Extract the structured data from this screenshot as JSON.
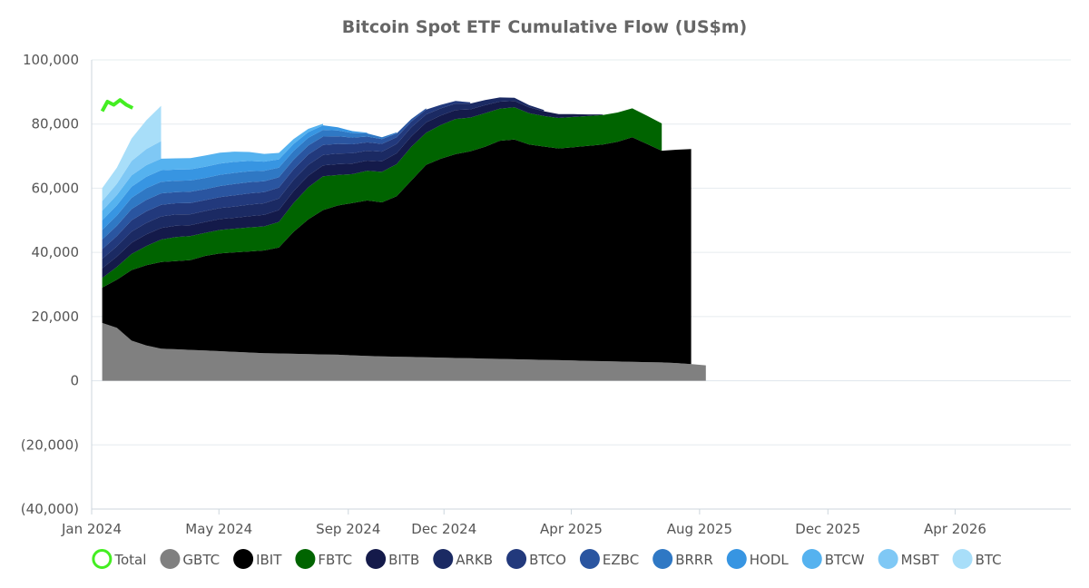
{
  "chart_data": {
    "type": "area",
    "stacked": true,
    "title": "Bitcoin Spot ETF Cumulative Flow (US$m)",
    "xlabel": "",
    "ylabel": "",
    "ylim": [
      -40000,
      100000
    ],
    "yticks": [
      {
        "value": 100000,
        "label": "100,000"
      },
      {
        "value": 80000,
        "label": "80,000"
      },
      {
        "value": 60000,
        "label": "60,000"
      },
      {
        "value": 40000,
        "label": "40,000"
      },
      {
        "value": 20000,
        "label": "20,000"
      },
      {
        "value": 0,
        "label": "0"
      },
      {
        "value": -20000,
        "label": "(20,000)"
      },
      {
        "value": -40000,
        "label": "(40,000)"
      }
    ],
    "xlim": [
      "2024-01-01",
      "2026-07-20"
    ],
    "xticks": [
      {
        "value": "2024-01-01",
        "label": "Jan 2024"
      },
      {
        "value": "2024-05-01",
        "label": "May 2024"
      },
      {
        "value": "2024-09-01",
        "label": "Sep 2024"
      },
      {
        "value": "2024-12-01",
        "label": "Dec 2024"
      },
      {
        "value": "2025-04-01",
        "label": "Apr 2025"
      },
      {
        "value": "2025-08-01",
        "label": "Aug 2025"
      },
      {
        "value": "2025-12-01",
        "label": "Dec 2025"
      },
      {
        "value": "2026-04-01",
        "label": "Apr 2026"
      }
    ],
    "grid": "horizontal",
    "legend_position": "bottom",
    "x": [
      "2024-01-11",
      "2024-01-25",
      "2024-02-08",
      "2024-02-22",
      "2024-03-07",
      "2024-03-21",
      "2024-04-04",
      "2024-04-18",
      "2024-05-02",
      "2024-05-16",
      "2024-05-30",
      "2024-06-13",
      "2024-06-27",
      "2024-07-11",
      "2024-07-25",
      "2024-08-08",
      "2024-08-22",
      "2024-09-05",
      "2024-09-19",
      "2024-10-03",
      "2024-10-17",
      "2024-10-31",
      "2024-11-14",
      "2024-11-28",
      "2024-12-12",
      "2024-12-26",
      "2025-01-09",
      "2025-01-23",
      "2025-02-06",
      "2025-02-20",
      "2025-03-06",
      "2025-03-20",
      "2025-04-03",
      "2025-04-17",
      "2025-05-01",
      "2025-05-15",
      "2025-05-29",
      "2025-06-12",
      "2025-06-26",
      "2025-07-10",
      "2025-07-24",
      "2025-08-07"
    ],
    "series": [
      {
        "name": "GBTC",
        "color": "#808080",
        "values": [
          18000,
          16500,
          12500,
          11000,
          10000,
          9800,
          9600,
          9400,
          9200,
          9000,
          8800,
          8600,
          8500,
          8400,
          8300,
          8200,
          8100,
          7900,
          7700,
          7600,
          7500,
          7400,
          7300,
          7200,
          7100,
          7000,
          6900,
          6800,
          6700,
          6600,
          6500,
          6400,
          6300,
          6200,
          6100,
          6000,
          5900,
          5800,
          5700,
          5500,
          5200,
          4800
        ]
      },
      {
        "name": "IBIT",
        "color": "#000000",
        "values": [
          11000,
          15000,
          22000,
          25000,
          27000,
          27500,
          28000,
          29500,
          30500,
          31000,
          31500,
          32000,
          33000,
          38000,
          42000,
          45000,
          46500,
          47500,
          48500,
          48000,
          50000,
          55000,
          60000,
          62000,
          63500,
          64500,
          66000,
          68000,
          68500,
          67000,
          66500,
          66000,
          66500,
          67000,
          67500,
          68500,
          70000,
          68000,
          66000,
          66500,
          67000,
          0
        ]
      },
      {
        "name": "FBTC",
        "color": "#006400",
        "values": [
          3000,
          4000,
          5000,
          6000,
          7000,
          7500,
          7500,
          7200,
          7300,
          7400,
          7500,
          7500,
          8000,
          9000,
          10000,
          10500,
          9500,
          9000,
          9200,
          9500,
          10000,
          10500,
          10000,
          10500,
          11000,
          10500,
          10500,
          10000,
          10000,
          9800,
          9500,
          9500,
          9400,
          9300,
          9200,
          9100,
          9000,
          8800,
          8500,
          0,
          0,
          0
        ]
      },
      {
        "name": "BITB",
        "color": "#141a4a",
        "values": [
          3000,
          3200,
          3500,
          3600,
          3600,
          3500,
          3400,
          3400,
          3400,
          3400,
          3500,
          3600,
          3700,
          3700,
          3600,
          3400,
          3400,
          3300,
          3200,
          3300,
          3400,
          3300,
          3200,
          3000,
          2800,
          2600,
          2500,
          2200,
          2000,
          1800,
          1500,
          1200,
          900,
          500,
          200,
          0,
          0,
          0,
          0,
          0,
          0,
          0
        ]
      },
      {
        "name": "ARKB",
        "color": "#1b2a63",
        "values": [
          3000,
          3200,
          3500,
          3600,
          3600,
          3500,
          3400,
          3400,
          3400,
          3500,
          3600,
          3600,
          3600,
          3500,
          3400,
          3300,
          3300,
          3200,
          3100,
          3000,
          2900,
          2800,
          2500,
          2200,
          2000,
          1800,
          1600,
          1300,
          1000,
          700,
          400,
          0,
          0,
          0,
          0,
          0,
          0,
          0,
          0,
          0,
          0,
          0
        ]
      },
      {
        "name": "BTCO",
        "color": "#22397c",
        "values": [
          3000,
          3200,
          3500,
          3600,
          3600,
          3500,
          3500,
          3400,
          3400,
          3500,
          3500,
          3500,
          3400,
          3300,
          3200,
          3100,
          3000,
          2800,
          2600,
          2400,
          2100,
          1800,
          1500,
          1100,
          800,
          400,
          0,
          0,
          0,
          0,
          0,
          0,
          0,
          0,
          0,
          0,
          0,
          0,
          0,
          0,
          0,
          0
        ]
      },
      {
        "name": "EZBC",
        "color": "#2a55a0",
        "values": [
          3000,
          3200,
          3500,
          3600,
          3600,
          3500,
          3500,
          3400,
          3500,
          3500,
          3500,
          3400,
          3200,
          3000,
          2800,
          2600,
          2400,
          2100,
          1800,
          1500,
          1200,
          800,
          400,
          0,
          0,
          0,
          0,
          0,
          0,
          0,
          0,
          0,
          0,
          0,
          0,
          0,
          0,
          0,
          0,
          0,
          0,
          0
        ]
      },
      {
        "name": "BRRR",
        "color": "#2f78c4",
        "values": [
          3000,
          3200,
          3500,
          3600,
          3600,
          3500,
          3500,
          3500,
          3500,
          3500,
          3400,
          3200,
          3000,
          2700,
          2400,
          2100,
          1800,
          1400,
          1000,
          600,
          300,
          0,
          0,
          0,
          0,
          0,
          0,
          0,
          0,
          0,
          0,
          0,
          0,
          0,
          0,
          0,
          0,
          0,
          0,
          0,
          0,
          0
        ]
      },
      {
        "name": "HODL",
        "color": "#3795e2",
        "values": [
          3000,
          3200,
          3500,
          3600,
          3600,
          3500,
          3500,
          3500,
          3500,
          3400,
          3200,
          2900,
          2600,
          2200,
          1800,
          1400,
          1000,
          600,
          200,
          0,
          0,
          0,
          0,
          0,
          0,
          0,
          0,
          0,
          0,
          0,
          0,
          0,
          0,
          0,
          0,
          0,
          0,
          0,
          0,
          0,
          0,
          0
        ]
      },
      {
        "name": "BTCW",
        "color": "#55b2ef",
        "values": [
          3000,
          3200,
          3500,
          3600,
          3600,
          3500,
          3500,
          3500,
          3400,
          3200,
          2800,
          2400,
          2000,
          1500,
          1000,
          500,
          0,
          0,
          0,
          0,
          0,
          0,
          0,
          0,
          0,
          0,
          0,
          0,
          0,
          0,
          0,
          0,
          0,
          0,
          0,
          0,
          0,
          0,
          0,
          0,
          0,
          0
        ]
      },
      {
        "name": "MSBT",
        "color": "#7fc8f5",
        "values": [
          3000,
          3500,
          4500,
          5000,
          5500,
          0,
          0,
          0,
          0,
          0,
          0,
          0,
          0,
          0,
          0,
          0,
          0,
          0,
          0,
          0,
          0,
          0,
          0,
          0,
          0,
          0,
          0,
          0,
          0,
          0,
          0,
          0,
          0,
          0,
          0,
          0,
          0,
          0,
          0,
          0,
          0,
          0
        ]
      },
      {
        "name": "BTC",
        "color": "#a8def9",
        "values": [
          4000,
          5000,
          7000,
          9000,
          11000,
          0,
          0,
          0,
          0,
          0,
          0,
          0,
          0,
          0,
          0,
          0,
          0,
          0,
          0,
          0,
          0,
          0,
          0,
          0,
          0,
          0,
          0,
          0,
          0,
          0,
          0,
          0,
          0,
          0,
          0,
          0,
          0,
          0,
          0,
          0,
          0,
          0
        ]
      }
    ],
    "total": {
      "name": "Total",
      "color": "#44ee22",
      "x": [
        "2024-01-11",
        "2024-01-16",
        "2024-01-22",
        "2024-01-28",
        "2024-02-03",
        "2024-02-09"
      ],
      "values": [
        84000,
        87000,
        86000,
        87500,
        86000,
        85000
      ]
    },
    "legend": [
      {
        "label": "Total",
        "color": "#44ee22",
        "style": "ring"
      },
      {
        "label": "GBTC",
        "color": "#808080",
        "style": "dot"
      },
      {
        "label": "IBIT",
        "color": "#000000",
        "style": "dot"
      },
      {
        "label": "FBTC",
        "color": "#006400",
        "style": "dot"
      },
      {
        "label": "BITB",
        "color": "#141a4a",
        "style": "dot"
      },
      {
        "label": "ARKB",
        "color": "#1b2a63",
        "style": "dot"
      },
      {
        "label": "BTCO",
        "color": "#22397c",
        "style": "dot"
      },
      {
        "label": "EZBC",
        "color": "#2a55a0",
        "style": "dot"
      },
      {
        "label": "BRRR",
        "color": "#2f78c4",
        "style": "dot"
      },
      {
        "label": "HODL",
        "color": "#3795e2",
        "style": "dot"
      },
      {
        "label": "BTCW",
        "color": "#55b2ef",
        "style": "dot"
      },
      {
        "label": "MSBT",
        "color": "#7fc8f5",
        "style": "dot"
      },
      {
        "label": "BTC",
        "color": "#a8def9",
        "style": "dot"
      }
    ]
  }
}
